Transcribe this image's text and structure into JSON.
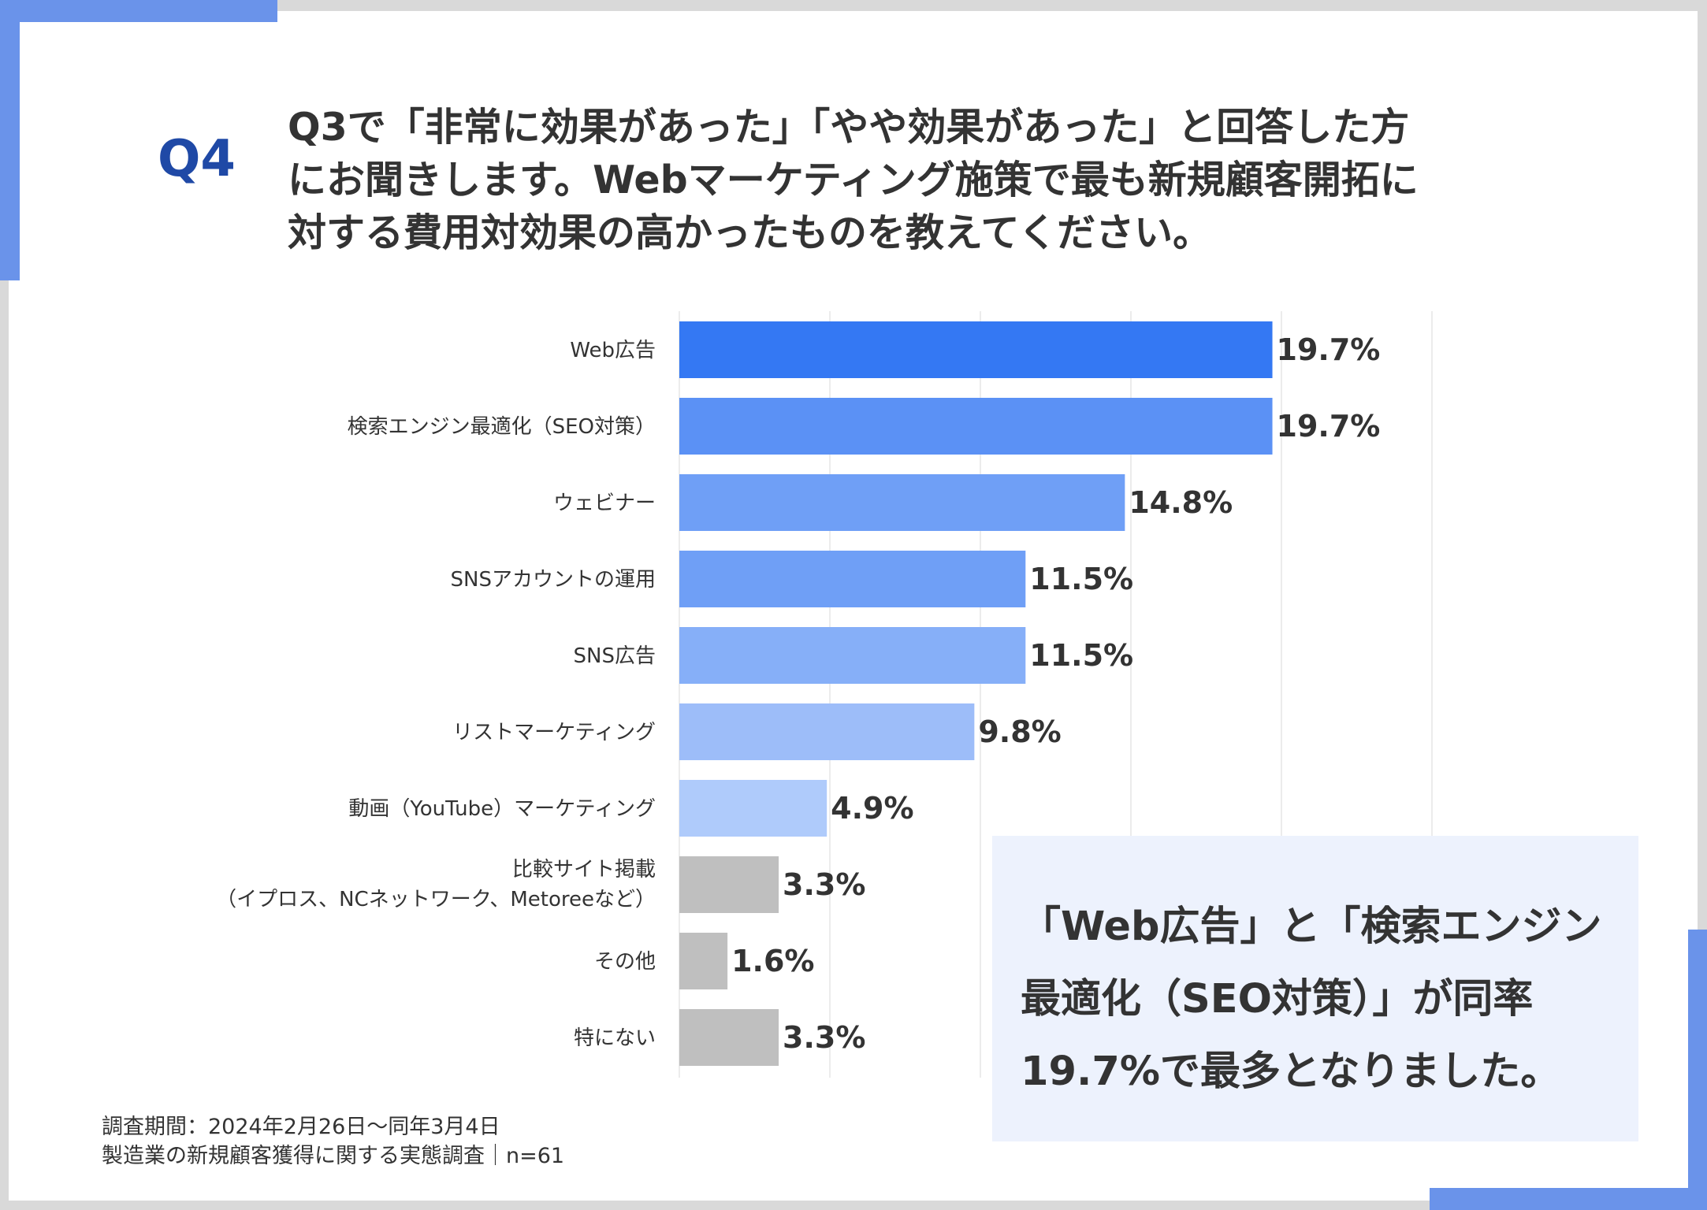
{
  "question": {
    "number": "Q4",
    "lines": [
      "Q3で「非常に効果があった」「やや効果があった」と回答した方",
      "にお聞きします。Webマーケティング施策で最も新規顧客開拓に",
      "対する費用対効果の高かったものを教えてください。"
    ]
  },
  "chart_data": {
    "type": "bar",
    "orientation": "horizontal",
    "categories": [
      [
        "Web広告"
      ],
      [
        "検索エンジン最適化（SEO対策）"
      ],
      [
        "ウェビナー"
      ],
      [
        "SNSアカウントの運用"
      ],
      [
        "SNS広告"
      ],
      [
        "リストマーケティング"
      ],
      [
        "動画（YouTube）マーケティング"
      ],
      [
        "比較サイト掲載",
        "（イプロス、NCネットワーク、Metoreeなど）"
      ],
      [
        "その他"
      ],
      [
        "特にない"
      ]
    ],
    "values": [
      19.7,
      19.7,
      14.8,
      11.5,
      11.5,
      9.8,
      4.9,
      3.3,
      1.6,
      3.3
    ],
    "value_labels": [
      "19.7%",
      "19.7%",
      "14.8%",
      "11.5%",
      "11.5%",
      "9.8%",
      "4.9%",
      "3.3%",
      "1.6%",
      "3.3%"
    ],
    "colors": [
      "#3478f3",
      "#5b91f5",
      "#6f9ff6",
      "#6f9ff6",
      "#86aff8",
      "#9dbdf9",
      "#afcbfb",
      "#bfbfbf",
      "#bfbfbf",
      "#bfbfbf"
    ],
    "xlim": [
      0,
      25
    ],
    "unit": "%",
    "grid": true
  },
  "callout": {
    "lines": [
      "「Web広告」と「検索エンジン",
      "最適化（SEO対策）」が同率",
      "19.7%で最多となりました。"
    ]
  },
  "footnote": {
    "lines": [
      "調査期間：2024年2月26日〜同年3月4日",
      "製造業の新規顧客獲得に関する実態調査｜n=61"
    ]
  }
}
